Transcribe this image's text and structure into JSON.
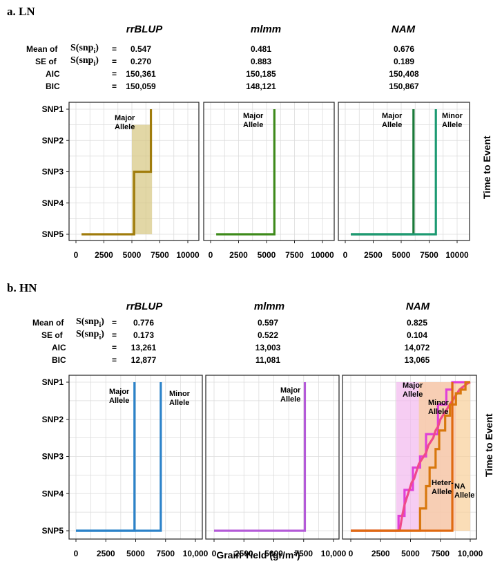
{
  "sections": [
    {
      "title": "a. LN",
      "models": [
        "rrBLUP",
        "mlmm",
        "NAM"
      ],
      "stats": [
        {
          "label": "Mean of",
          "expr": "S(snp",
          "sub": "i",
          "close": ")",
          "values": [
            "0.547",
            "0.481",
            "0.676"
          ]
        },
        {
          "label": "SE of",
          "expr": "S(snp",
          "sub": "i",
          "close": ")",
          "values": [
            "0.270",
            "0.883",
            "0.189"
          ]
        },
        {
          "label": "AIC",
          "values": [
            "150,361",
            "150,185",
            "150,408"
          ]
        },
        {
          "label": "BIC",
          "values": [
            "150,059",
            "148,121",
            "150,867"
          ]
        }
      ]
    },
    {
      "title": "b. HN",
      "models": [
        "rrBLUP",
        "mlmm",
        "NAM"
      ],
      "stats": [
        {
          "label": "Mean of",
          "expr": "S(snp",
          "sub": "i",
          "close": ")",
          "values": [
            "0.776",
            "0.597",
            "0.825"
          ]
        },
        {
          "label": "SE of",
          "expr": "S(snp",
          "sub": "i",
          "close": ")",
          "values": [
            "0.173",
            "0.522",
            "0.104"
          ]
        },
        {
          "label": "AIC",
          "values": [
            "13,261",
            "13,003",
            "14,072"
          ]
        },
        {
          "label": "BIC",
          "values": [
            "12,877",
            "11,081",
            "13,065"
          ]
        }
      ]
    }
  ],
  "eq_sign": "=",
  "chart_data": [
    {
      "panel": "a. LN - rrBLUP",
      "type": "line",
      "y_ticks": [
        "SNP1",
        "SNP2",
        "SNP3",
        "SNP4",
        "SNP5"
      ],
      "x_ticks": [
        "0",
        "2500",
        "5000",
        "7500",
        "10000"
      ],
      "xlim": [
        0,
        10000
      ],
      "series": [
        {
          "name": "Major Allele",
          "color": "#a07c0c",
          "band_color": "#d6c680",
          "x": [
            500,
            5200,
            5200,
            6700,
            6700
          ],
          "y": [
            5,
            5,
            3,
            3,
            1
          ],
          "band": {
            "x": [
              5000,
              6800
            ],
            "y": [
              1.5,
              5
            ]
          }
        }
      ]
    },
    {
      "panel": "a. LN - mlmm",
      "type": "line",
      "y_ticks": [
        "SNP1",
        "SNP2",
        "SNP3",
        "SNP4",
        "SNP5"
      ],
      "x_ticks": [
        "0",
        "2500",
        "5000",
        "7500",
        "10000"
      ],
      "xlim": [
        0,
        10000
      ],
      "series": [
        {
          "name": "Major Allele",
          "color": "#3e8a1b",
          "x": [
            500,
            5700,
            5700
          ],
          "y": [
            5,
            5,
            1
          ]
        }
      ]
    },
    {
      "panel": "a. LN - NAM",
      "type": "line",
      "y_ticks": [
        "SNP1",
        "SNP2",
        "SNP3",
        "SNP4",
        "SNP5"
      ],
      "x_ticks": [
        "0",
        "2500",
        "5000",
        "7500",
        "10000"
      ],
      "xlim": [
        0,
        10000
      ],
      "y_title": "Time to Event",
      "series": [
        {
          "name": "Major Allele",
          "color": "#1b7a3a",
          "x": [
            500,
            6100,
            6100
          ],
          "y": [
            5,
            5,
            1
          ]
        },
        {
          "name": "Minor Allele",
          "color": "#1d9a72",
          "x": [
            500,
            8100,
            8100
          ],
          "y": [
            5,
            5,
            1
          ]
        }
      ]
    },
    {
      "panel": "b. HN - rrBLUP",
      "type": "line",
      "y_ticks": [
        "SNP1",
        "SNP2",
        "SNP3",
        "SNP4",
        "SNP5"
      ],
      "x_ticks": [
        "0",
        "2500",
        "5000",
        "7500",
        "10,000"
      ],
      "xlim": [
        0,
        10000
      ],
      "series": [
        {
          "name": "Major Allele",
          "color": "#2b82c9",
          "x": [
            0,
            4900,
            4900
          ],
          "y": [
            5,
            5,
            1
          ]
        },
        {
          "name": "Minor Allele",
          "color": "#2b82c9",
          "x": [
            0,
            7100,
            7100
          ],
          "y": [
            5,
            5,
            1
          ]
        }
      ]
    },
    {
      "panel": "b. HN - mlmm",
      "type": "line",
      "y_ticks": [
        "SNP1",
        "SNP2",
        "SNP3",
        "SNP4",
        "SNP5"
      ],
      "x_ticks": [
        "0",
        "2500",
        "5000",
        "7500",
        "10,000"
      ],
      "xlim": [
        0,
        10000
      ],
      "series": [
        {
          "name": "Major Allele",
          "color": "#b45ad8",
          "x": [
            0,
            7600,
            7600
          ],
          "y": [
            5,
            5,
            1
          ]
        }
      ]
    },
    {
      "panel": "b. HN - NAM",
      "type": "line",
      "y_ticks": [
        "SNP1",
        "SNP2",
        "SNP3",
        "SNP4",
        "SNP5"
      ],
      "x_ticks": [
        "0",
        "2500",
        "5000",
        "7500",
        "10,000"
      ],
      "xlim": [
        0,
        10000
      ],
      "x_title": "Grain Yield (gr/m²)",
      "y_title": "Time to Event",
      "series": [
        {
          "name": "Major Allele",
          "color": "#e040d8",
          "band_color": "#f2b8ee",
          "x": [
            0,
            4000,
            4000,
            4500,
            4500,
            5200,
            5200,
            5800,
            5800,
            6300,
            6300,
            7300,
            7300,
            8000,
            8000,
            8500,
            8500,
            10000
          ],
          "y": [
            5,
            5,
            4.6,
            4.6,
            3.9,
            3.9,
            3.3,
            3.3,
            3.0,
            3.0,
            2.4,
            2.4,
            1.6,
            1.6,
            1.2,
            1.2,
            1.0,
            1.0
          ],
          "band": {
            "x": [
              3800,
              8800
            ],
            "y": [
              1,
              5
            ]
          }
        },
        {
          "name": "Minor Allele",
          "color": "#f04a8a",
          "x": [
            0,
            4100,
            4300,
            4500,
            4700,
            4900,
            5100,
            5300,
            5500,
            5700,
            5900,
            6100,
            6300,
            6500,
            6700,
            6900,
            7100,
            7300,
            7500,
            7700,
            7900,
            8100,
            8300,
            8500,
            8700,
            8900,
            9100,
            9300,
            9500,
            9700,
            10000
          ],
          "y": [
            5,
            5,
            4.6,
            4.3,
            4.1,
            3.9,
            3.7,
            3.6,
            3.4,
            3.2,
            3.1,
            3.0,
            2.9,
            2.7,
            2.6,
            2.5,
            2.3,
            2.2,
            2.0,
            1.9,
            1.8,
            1.7,
            1.6,
            1.5,
            1.4,
            1.3,
            1.2,
            1.15,
            1.1,
            1.05,
            1.0
          ]
        },
        {
          "name": "Heter- Allele",
          "color": "#d8780e",
          "band_color": "#f8cf98",
          "x": [
            0,
            5800,
            5800,
            6300,
            6300,
            6600,
            6600,
            7100,
            7100,
            7400,
            7400,
            7900,
            7900,
            8300,
            8300,
            8800,
            8800,
            9200,
            9200,
            9600,
            9600,
            10000
          ],
          "y": [
            5,
            5,
            4.4,
            4.4,
            3.8,
            3.8,
            3.3,
            3.3,
            2.8,
            2.8,
            2.3,
            2.3,
            1.9,
            1.9,
            1.6,
            1.6,
            1.3,
            1.3,
            1.2,
            1.2,
            1.0,
            1.0
          ],
          "band": {
            "x": [
              5700,
              10000
            ],
            "y": [
              1,
              5
            ]
          }
        },
        {
          "name": "NA Allele",
          "color": "#e06a10",
          "x": [
            0,
            8500,
            8500
          ],
          "y": [
            5,
            5,
            1
          ]
        }
      ]
    }
  ],
  "annotations": {
    "major": "Major",
    "minor": "Minor",
    "allele": "Allele",
    "heter": "Heter-",
    "na": "NA"
  }
}
